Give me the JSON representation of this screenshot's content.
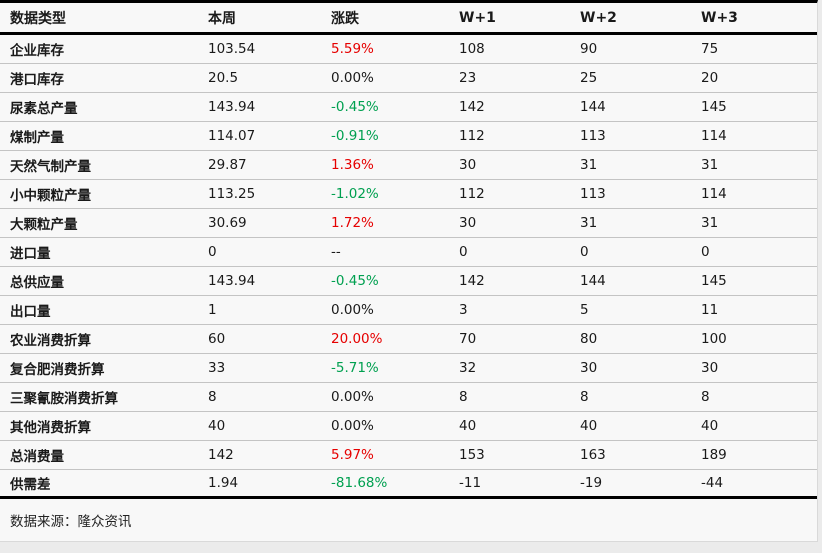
{
  "chart_data": {
    "type": "table",
    "columns": [
      "数据类型",
      "本周",
      "涨跌",
      "W+1",
      "W+2",
      "W+3"
    ],
    "rows": [
      {
        "label": "企业库存",
        "this_week": "103.54",
        "change": "5.59%",
        "direction": "up",
        "w1": "108",
        "w2": "90",
        "w3": "75"
      },
      {
        "label": "港口库存",
        "this_week": "20.5",
        "change": "0.00%",
        "direction": "flat",
        "w1": "23",
        "w2": "25",
        "w3": "20"
      },
      {
        "label": "尿素总产量",
        "this_week": "143.94",
        "change": "-0.45%",
        "direction": "down",
        "w1": "142",
        "w2": "144",
        "w3": "145"
      },
      {
        "label": "煤制产量",
        "this_week": "114.07",
        "change": "-0.91%",
        "direction": "down",
        "w1": "112",
        "w2": "113",
        "w3": "114"
      },
      {
        "label": "天然气制产量",
        "this_week": "29.87",
        "change": "1.36%",
        "direction": "up",
        "w1": "30",
        "w2": "31",
        "w3": "31"
      },
      {
        "label": "小中颗粒产量",
        "this_week": "113.25",
        "change": "-1.02%",
        "direction": "down",
        "w1": "112",
        "w2": "113",
        "w3": "114"
      },
      {
        "label": "大颗粒产量",
        "this_week": "30.69",
        "change": "1.72%",
        "direction": "up",
        "w1": "30",
        "w2": "31",
        "w3": "31"
      },
      {
        "label": "进口量",
        "this_week": "0",
        "change": "--",
        "direction": "flat",
        "w1": "0",
        "w2": "0",
        "w3": "0"
      },
      {
        "label": "总供应量",
        "this_week": "143.94",
        "change": "-0.45%",
        "direction": "down",
        "w1": "142",
        "w2": "144",
        "w3": "145"
      },
      {
        "label": "出口量",
        "this_week": "1",
        "change": "0.00%",
        "direction": "flat",
        "w1": "3",
        "w2": "5",
        "w3": "11"
      },
      {
        "label": "农业消费折算",
        "this_week": "60",
        "change": "20.00%",
        "direction": "up",
        "w1": "70",
        "w2": "80",
        "w3": "100"
      },
      {
        "label": "复合肥消费折算",
        "this_week": "33",
        "change": "-5.71%",
        "direction": "down",
        "w1": "32",
        "w2": "30",
        "w3": "30"
      },
      {
        "label": "三聚氰胺消费折算",
        "this_week": "8",
        "change": "0.00%",
        "direction": "flat",
        "w1": "8",
        "w2": "8",
        "w3": "8"
      },
      {
        "label": "其他消费折算",
        "this_week": "40",
        "change": "0.00%",
        "direction": "flat",
        "w1": "40",
        "w2": "40",
        "w3": "40"
      },
      {
        "label": "总消费量",
        "this_week": "142",
        "change": "5.97%",
        "direction": "up",
        "w1": "153",
        "w2": "163",
        "w3": "189"
      },
      {
        "label": "供需差",
        "this_week": "1.94",
        "change": "-81.68%",
        "direction": "down",
        "w1": "-11",
        "w2": "-19",
        "w3": "-44"
      }
    ]
  },
  "footer": {
    "source_label": "数据来源：隆众资讯"
  },
  "colors": {
    "up": "#e60000",
    "down": "#00a050",
    "flat": "#1a1a1a"
  }
}
